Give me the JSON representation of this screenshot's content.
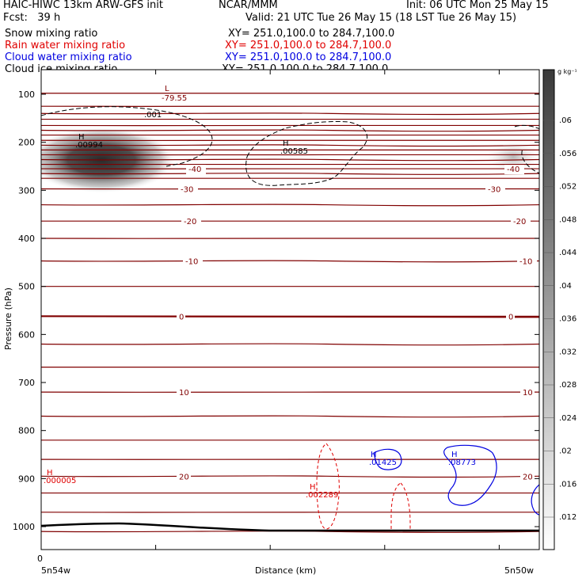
{
  "header": {
    "title_left": "HAIC-HIWC 13km ARW-GFS init",
    "title_center": "NCAR/MMM",
    "init": "Init: 06 UTC Mon 25 May 15",
    "fcst": "Fcst:   39 h",
    "valid": "Valid: 21 UTC Tue 26 May 15 (18 LST Tue 26 May 15)"
  },
  "fields": [
    {
      "name": "Snow mixing ratio",
      "xy": "XY= 251.0,100.0 to 284.7,100.0",
      "color": "#000000"
    },
    {
      "name": "Rain water mixing ratio",
      "xy": "XY= 251.0,100.0 to 284.7,100.0",
      "color": "#e00000"
    },
    {
      "name": "Cloud water mixing ratio",
      "xy": "XY= 251.0,100.0 to 284.7,100.0",
      "color": "#0000e0"
    },
    {
      "name": "Cloud ice mixing ratio",
      "xy": "XY= 251.0,100.0 to 284.7,100.0",
      "color": "#000000"
    }
  ],
  "colorbar": {
    "unit": "g kg⁻¹",
    "ticks": [
      ".012",
      ".016",
      ".02",
      ".024",
      ".028",
      ".032",
      ".036",
      ".04",
      ".044",
      ".048",
      ".052",
      ".056",
      ".06"
    ]
  },
  "colors": {
    "temperature": "#800000",
    "rain": "#e00000",
    "cloud_water": "#0000e0",
    "terrain": "#000000"
  },
  "chart_data": {
    "type": "contour",
    "xlabel": "Distance (km)",
    "ylabel": "Pressure (hPa)",
    "ylim": [
      1050,
      50
    ],
    "x_tick_label": "0",
    "x_end_labels": [
      "5n54w",
      "5n50w"
    ],
    "y_ticks": [
      100,
      200,
      300,
      400,
      500,
      600,
      700,
      800,
      900,
      1000
    ],
    "temperature_contours": [
      {
        "value": "-40",
        "p": 255
      },
      {
        "value": "-30",
        "p": 297
      },
      {
        "value": "-20",
        "p": 364
      },
      {
        "value": "-10",
        "p": 447
      },
      {
        "value": "0",
        "p": 562
      },
      {
        "value": "10",
        "p": 720
      },
      {
        "value": "20",
        "p": 895
      }
    ],
    "annotations": [
      {
        "kind": "L",
        "value": "-79.55",
        "color": "#800000"
      },
      {
        "kind": "label",
        "value": ".001",
        "color": "#000000"
      },
      {
        "kind": "H",
        "value": ".00994",
        "color": "#000000"
      },
      {
        "kind": "H",
        "value": ".00585",
        "color": "#000000"
      },
      {
        "kind": "H",
        "value": ".000005",
        "color": "#e00000"
      },
      {
        "kind": "H",
        "value": ".002289",
        "color": "#e00000"
      },
      {
        "kind": "H",
        "value": ".01425",
        "color": "#0000e0"
      },
      {
        "kind": "H",
        "value": ".08773",
        "color": "#0000e0"
      }
    ]
  }
}
